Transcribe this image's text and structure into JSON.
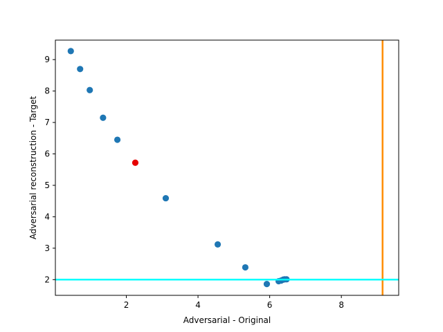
{
  "chart_data": {
    "type": "scatter",
    "xlabel": "Adversarial - Original",
    "ylabel": "Adversarial reconstruction - Target",
    "xlim": [
      0.02,
      9.6
    ],
    "ylim": [
      1.5,
      9.62
    ],
    "xticks": [
      2,
      4,
      6,
      8
    ],
    "yticks": [
      2,
      3,
      4,
      5,
      6,
      7,
      8,
      9
    ],
    "grid": false,
    "series": [
      {
        "color": "#1f77b4",
        "points": [
          [
            0.45,
            9.27
          ],
          [
            0.71,
            8.7
          ],
          [
            0.98,
            8.03
          ],
          [
            1.35,
            7.15
          ],
          [
            1.75,
            6.45
          ],
          [
            3.1,
            4.59
          ],
          [
            4.55,
            3.12
          ],
          [
            5.32,
            2.39
          ],
          [
            5.92,
            1.86
          ],
          [
            6.25,
            1.95
          ],
          [
            6.32,
            1.97
          ],
          [
            6.38,
            2.0
          ],
          [
            6.42,
            2.01
          ],
          [
            6.47,
            2.01
          ]
        ]
      },
      {
        "color": "#e60000",
        "points": [
          [
            2.25,
            5.72
          ]
        ]
      }
    ],
    "reference_lines": [
      {
        "orientation": "vertical",
        "value": 9.15,
        "color": "#ff8c00"
      },
      {
        "orientation": "horizontal",
        "value": 2.0,
        "color": "#00ffff"
      }
    ]
  }
}
